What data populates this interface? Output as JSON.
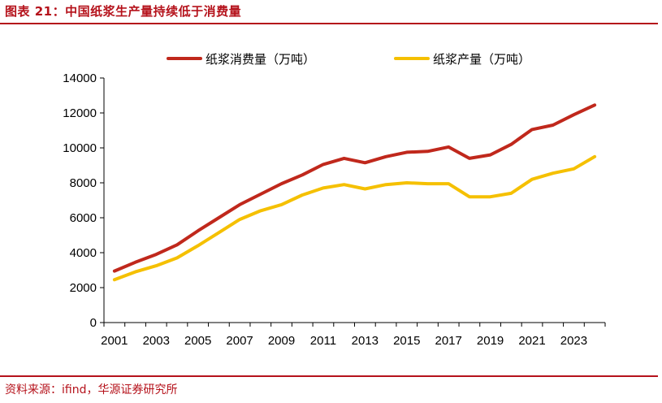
{
  "figure": {
    "title": "图表 21：中国纸浆生产量持续低于消费量",
    "source": "资料来源：ifind，华源证券研究所"
  },
  "chart_data": {
    "type": "line",
    "title": "",
    "xlabel": "",
    "ylabel": "",
    "x": [
      2001,
      2002,
      2003,
      2004,
      2005,
      2006,
      2007,
      2008,
      2009,
      2010,
      2011,
      2012,
      2013,
      2014,
      2015,
      2016,
      2017,
      2018,
      2019,
      2020,
      2021,
      2022,
      2023,
      2024
    ],
    "x_ticks": [
      "2001",
      "2003",
      "2005",
      "2007",
      "2009",
      "2011",
      "2013",
      "2015",
      "2017",
      "2019",
      "2021",
      "2023"
    ],
    "y_ticks": [
      "0",
      "2000",
      "4000",
      "6000",
      "8000",
      "10000",
      "12000",
      "14000"
    ],
    "ylim": [
      0,
      14000
    ],
    "grid": false,
    "legend_position": "top",
    "series": [
      {
        "name": "纸浆消费量（万吨）",
        "color": "#c0281c",
        "values": [
          2950,
          3450,
          3900,
          4450,
          5250,
          6000,
          6750,
          7350,
          7950,
          8450,
          9050,
          9400,
          9150,
          9500,
          9750,
          9800,
          10050,
          9400,
          9600,
          10200,
          11050,
          11300,
          11900,
          12450
        ]
      },
      {
        "name": "纸浆产量（万吨）",
        "color": "#f5c000",
        "values": [
          2450,
          2900,
          3250,
          3700,
          4400,
          5150,
          5900,
          6400,
          6750,
          7300,
          7700,
          7900,
          7650,
          7900,
          8000,
          7950,
          7950,
          7200,
          7200,
          7400,
          8200,
          8550,
          8800,
          9500
        ]
      }
    ]
  }
}
